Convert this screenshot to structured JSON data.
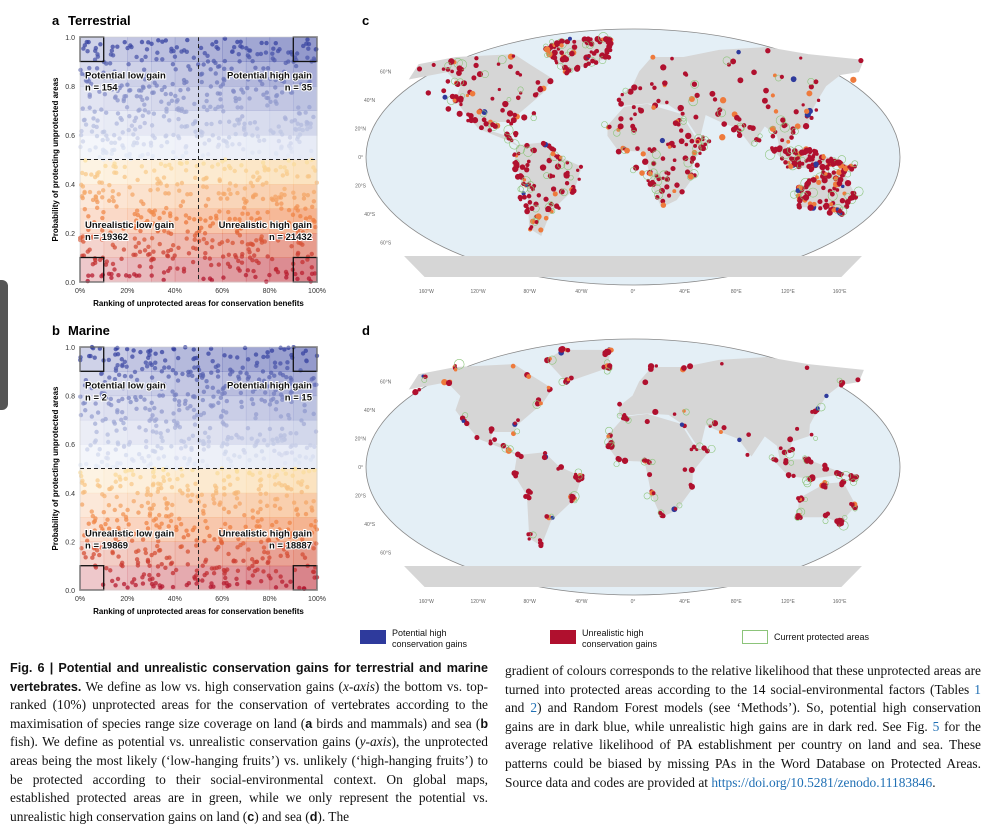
{
  "panels": [
    {
      "letter": "a",
      "title": "Terrestrial",
      "y_axis_title": "Probability of protecting unprotected areas",
      "x_axis_title": "Ranking of unprotected areas for conservation benefits",
      "yticks": [
        "1.0",
        "0.8",
        "0.6",
        "0.4",
        "0.2",
        "0.0"
      ],
      "xticks": [
        "0%",
        "20%",
        "40%",
        "60%",
        "80%",
        "100%"
      ],
      "quadrants": [
        {
          "label": "Potential low gain",
          "n": "n = 154"
        },
        {
          "label": "Potential high gain",
          "n": "n = 35"
        },
        {
          "label": "Unrealistic low gain",
          "n": "n = 19362"
        },
        {
          "label": "Unrealistic high gain",
          "n": "n = 21432"
        }
      ]
    },
    {
      "letter": "b",
      "title": "Marine",
      "y_axis_title": "Probability of protecting unprotected areas",
      "x_axis_title": "Ranking of unprotected areas for conservation benefits",
      "yticks": [
        "1.0",
        "0.8",
        "0.6",
        "0.4",
        "0.2",
        "0.0"
      ],
      "xticks": [
        "0%",
        "20%",
        "40%",
        "60%",
        "80%",
        "100%"
      ],
      "quadrants": [
        {
          "label": "Potential low gain",
          "n": "n = 2"
        },
        {
          "label": "Potential high gain",
          "n": "n = 15"
        },
        {
          "label": "Unrealistic low gain",
          "n": "n = 19869"
        },
        {
          "label": "Unrealistic high gain",
          "n": "n = 18887"
        }
      ]
    }
  ],
  "maps": [
    {
      "letter": "c"
    },
    {
      "letter": "d"
    }
  ],
  "map_lon_labels": [
    "160°W",
    "120°W",
    "80°W",
    "40°W",
    "0°",
    "40°E",
    "80°E",
    "120°E",
    "160°E"
  ],
  "map_lat_labels": [
    "60°N",
    "40°N",
    "20°N",
    "0°",
    "20°S",
    "40°S",
    "60°S"
  ],
  "legend": [
    {
      "label": "Potential high conservation gains",
      "color": "#2e3a9c"
    },
    {
      "label": "Unrealistic high conservation gains",
      "color": "#b0102e"
    },
    {
      "label": "Current protected areas",
      "color": "#8cc47a"
    }
  ],
  "caption": {
    "left": [
      {
        "text": "Fig. 6 | Potential and unrealistic conservation gains for terrestrial and marine vertebrates.",
        "style": "bold"
      },
      {
        "text": " We define as low vs. high conservation gains (",
        "style": "plain"
      },
      {
        "text": "x-axis",
        "style": "italic"
      },
      {
        "text": ") the bottom vs. top-ranked (10%) unprotected areas for the conservation of vertebrates according to the maximisation of species range size coverage on land (",
        "style": "plain"
      },
      {
        "text": "a",
        "style": "bold"
      },
      {
        "text": " birds and mammals) and sea (",
        "style": "plain"
      },
      {
        "text": "b",
        "style": "bold"
      },
      {
        "text": " fish). We define as potential vs. unrealistic conservation gains (",
        "style": "plain"
      },
      {
        "text": "y-axis",
        "style": "italic"
      },
      {
        "text": "), the unprotected areas being the most likely (‘low-hanging fruits’) vs. unlikely (‘high-hanging fruits’) to be protected according to their social-environmental context. On global maps, established protected areas are in green, while we only represent the potential vs. unrealistic high conservation gains on land (",
        "style": "plain"
      },
      {
        "text": "c",
        "style": "bold"
      },
      {
        "text": ") and sea (",
        "style": "plain"
      },
      {
        "text": "d",
        "style": "bold"
      },
      {
        "text": "). The",
        "style": "plain"
      }
    ],
    "right": [
      {
        "text": "gradient of colours corresponds to the relative likelihood that these unprotected areas are turned into protected areas according to the 14 social-environmental factors (Tables ",
        "style": "plain"
      },
      {
        "text": "1",
        "style": "link"
      },
      {
        "text": " and ",
        "style": "plain"
      },
      {
        "text": "2",
        "style": "link"
      },
      {
        "text": ") and Random Forest models (see ‘Methods’). So, potential high conservation gains are in dark blue, while unrealistic high gains are in dark red. See Fig. ",
        "style": "plain"
      },
      {
        "text": "5",
        "style": "link"
      },
      {
        "text": " for the average relative likelihood of PA establishment per country on land and sea. These patterns could be biased by missing PAs in the Word Database on Protected Areas. Source data and codes are provided at ",
        "style": "plain"
      },
      {
        "text": "https://doi.org/10.5281/zenodo.11183846",
        "style": "link"
      },
      {
        "text": ".",
        "style": "plain"
      }
    ]
  }
}
